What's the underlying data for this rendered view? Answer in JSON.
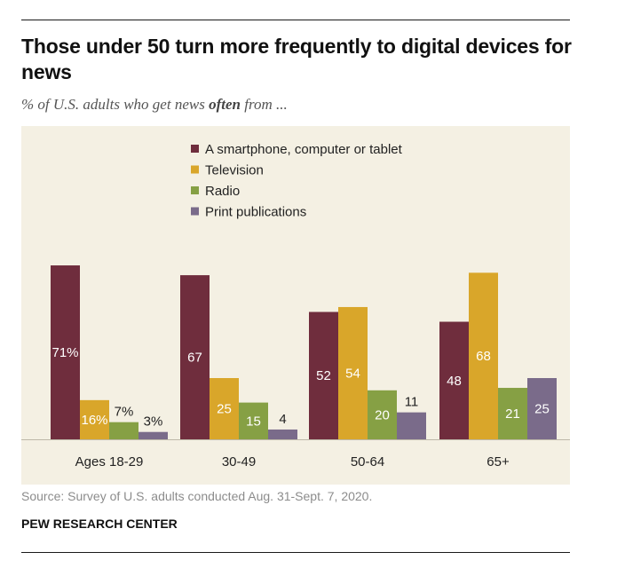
{
  "title": "Those under 50 turn more frequently to digital devices for news",
  "subtitle": {
    "before": "% of U.S. adults who get news ",
    "emphasis": "often",
    "after": " from ..."
  },
  "source": "Source: Survey of U.S. adults conducted Aug. 31-Sept. 7, 2020.",
  "brand": "PEW RESEARCH CENTER",
  "chart_data": {
    "type": "bar",
    "categories": [
      "Ages 18-29",
      "30-49",
      "50-64",
      "65+"
    ],
    "series": [
      {
        "name": "A smartphone, computer or tablet",
        "color": "#6f2d3d",
        "values": [
          71,
          67,
          52,
          48
        ],
        "labels": [
          "71%",
          "67",
          "52",
          "48"
        ]
      },
      {
        "name": "Television",
        "color": "#d9a62a",
        "values": [
          16,
          25,
          54,
          68
        ],
        "labels": [
          "16%",
          "25",
          "54",
          "68"
        ]
      },
      {
        "name": "Radio",
        "color": "#86a044",
        "values": [
          7,
          15,
          20,
          21
        ],
        "labels": [
          "7%",
          "15",
          "20",
          "21"
        ]
      },
      {
        "name": "Print publications",
        "color": "#7a6b8a",
        "values": [
          3,
          4,
          11,
          25
        ],
        "labels": [
          "3%",
          "4",
          "11",
          "25"
        ]
      }
    ],
    "ylim": [
      0,
      72
    ],
    "grid": false,
    "legend_position": "top-center"
  }
}
